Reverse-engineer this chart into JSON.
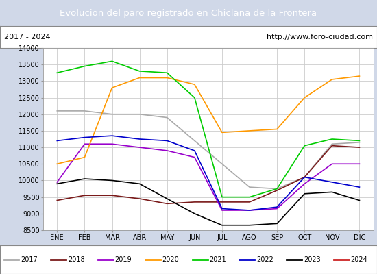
{
  "title": "Evolucion del paro registrado en Chiclana de la Frontera",
  "subtitle_left": "2017 - 2024",
  "subtitle_right": "http://www.foro-ciudad.com",
  "months": [
    "ENE",
    "FEB",
    "MAR",
    "ABR",
    "MAY",
    "JUN",
    "JUL",
    "AGO",
    "SEP",
    "OCT",
    "NOV",
    "DIC"
  ],
  "ylim": [
    8500,
    14000
  ],
  "yticks": [
    8500,
    9000,
    9500,
    10000,
    10500,
    11000,
    11500,
    12000,
    12500,
    13000,
    13500,
    14000
  ],
  "series": {
    "2017": {
      "color": "#aaaaaa",
      "data": [
        12100,
        12100,
        12000,
        12000,
        11900,
        11200,
        10500,
        9800,
        9750,
        10100,
        11100,
        11150
      ]
    },
    "2018": {
      "color": "#7a1a1a",
      "data": [
        9400,
        9550,
        9550,
        9450,
        9300,
        9350,
        9350,
        9350,
        9700,
        10100,
        11050,
        11000
      ]
    },
    "2019": {
      "color": "#9900cc",
      "data": [
        9950,
        11100,
        11100,
        11000,
        10900,
        10700,
        9100,
        9100,
        9150,
        9900,
        10500,
        10500
      ]
    },
    "2020": {
      "color": "#ff9900",
      "data": [
        10500,
        10700,
        12800,
        13100,
        13100,
        12900,
        11450,
        11500,
        11550,
        12500,
        13050,
        13150
      ]
    },
    "2021": {
      "color": "#00cc00",
      "data": [
        13250,
        13450,
        13600,
        13300,
        13250,
        12500,
        9500,
        9500,
        9750,
        11050,
        11250,
        11200
      ]
    },
    "2022": {
      "color": "#0000cc",
      "data": [
        11200,
        11300,
        11350,
        11250,
        11200,
        10900,
        9150,
        9100,
        9200,
        10100,
        9950,
        9800
      ]
    },
    "2023": {
      "color": "#000000",
      "data": [
        9900,
        10050,
        10000,
        9900,
        9450,
        9000,
        8650,
        8650,
        8700,
        9600,
        9650,
        9400
      ]
    },
    "2024": {
      "color": "#cc2222",
      "data": [
        null,
        null,
        null,
        null,
        null,
        null,
        null,
        null,
        null,
        null,
        null,
        null
      ]
    }
  },
  "title_bg": "#4d7ebf",
  "title_color": "white",
  "plot_bg": "#ffffff",
  "grid_color": "#cccccc",
  "border_color": "#4d7ebf",
  "fig_bg": "#d0d8e8"
}
